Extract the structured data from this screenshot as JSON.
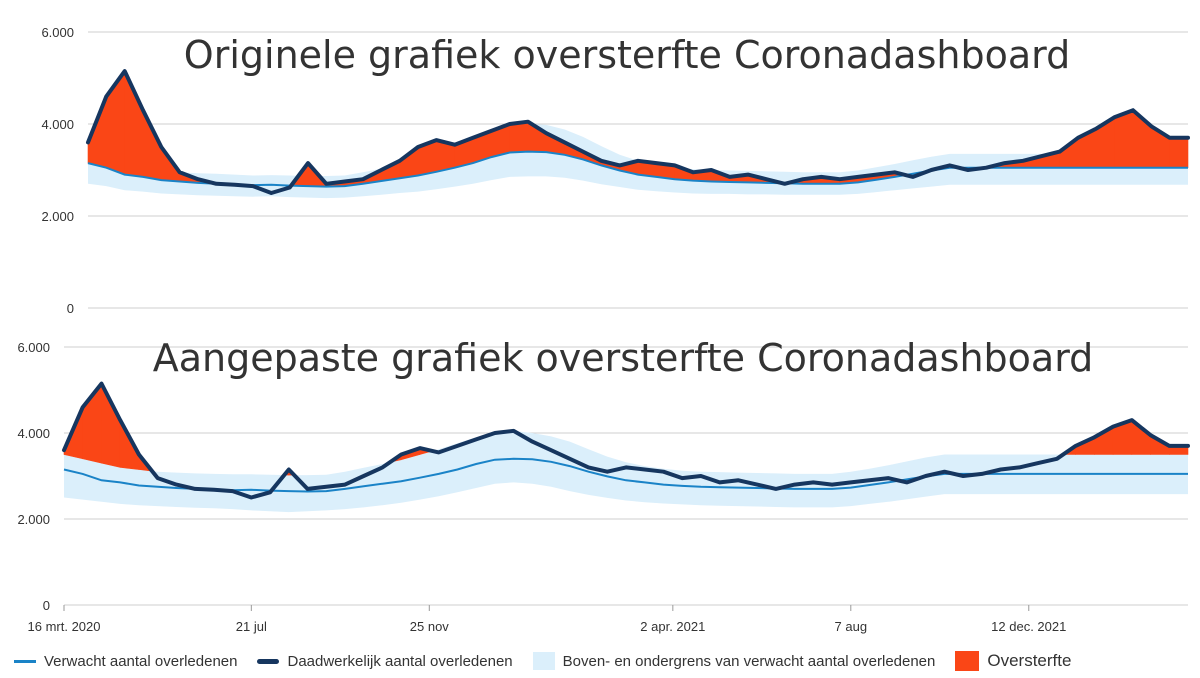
{
  "chart_data": [
    {
      "type": "line",
      "title": "Originele grafiek oversterfte Coronadashboard",
      "show_xticks": false,
      "ylim": [
        0,
        6000
      ],
      "yticks": [
        0,
        2000,
        4000,
        6000
      ],
      "ytick_labels": [
        "0",
        "2.000",
        "4.000",
        "6.000"
      ],
      "x_tick_labels": [],
      "grid": true,
      "x_weeks": [
        1,
        3,
        5,
        7,
        9,
        11,
        13,
        15,
        17,
        19,
        21,
        23,
        25,
        27,
        29,
        31,
        33,
        35,
        37,
        39,
        41,
        43,
        45,
        47,
        49,
        51,
        53,
        55,
        57,
        59,
        61,
        63,
        65,
        67,
        69,
        71,
        73,
        75,
        77,
        79,
        81,
        83,
        85,
        87,
        89,
        91,
        93,
        95,
        97,
        99,
        101,
        103,
        105,
        107,
        109,
        111,
        113,
        115,
        117,
        119,
        121
      ],
      "series": [
        {
          "name": "Verwacht aantal overledenen",
          "role": "expected",
          "values": [
            3150,
            3050,
            2900,
            2850,
            2780,
            2750,
            2720,
            2700,
            2680,
            2670,
            2680,
            2660,
            2650,
            2640,
            2650,
            2700,
            2760,
            2820,
            2880,
            2960,
            3050,
            3150,
            3280,
            3380,
            3400,
            3390,
            3330,
            3230,
            3100,
            2990,
            2900,
            2850,
            2800,
            2770,
            2750,
            2740,
            2730,
            2720,
            2710,
            2700,
            2700,
            2700,
            2730,
            2790,
            2850,
            2920,
            2990,
            3050,
            3050,
            3050,
            3050,
            3050,
            3050,
            3050,
            3050,
            3050,
            3050,
            3050,
            3050,
            3050,
            3050
          ]
        },
        {
          "name": "Boven- en ondergrens van verwacht aantal overledenen",
          "role": "band",
          "upper": [
            3400,
            3300,
            3150,
            3100,
            3000,
            2950,
            2930,
            2920,
            2900,
            2880,
            2890,
            2880,
            2870,
            2870,
            2880,
            2950,
            3030,
            3110,
            3210,
            3330,
            3460,
            3600,
            3800,
            3950,
            4000,
            3980,
            3880,
            3720,
            3520,
            3330,
            3200,
            3120,
            3060,
            3020,
            3000,
            2990,
            2980,
            2970,
            2960,
            2950,
            2950,
            2950,
            2990,
            3060,
            3130,
            3210,
            3290,
            3350,
            3350,
            3350,
            3350,
            3350,
            3350,
            3350,
            3350,
            3350,
            3350,
            3350,
            3350,
            3350,
            3350
          ],
          "lower": [
            2700,
            2650,
            2560,
            2530,
            2490,
            2470,
            2450,
            2440,
            2430,
            2420,
            2430,
            2410,
            2400,
            2390,
            2400,
            2430,
            2460,
            2500,
            2530,
            2580,
            2640,
            2700,
            2780,
            2850,
            2860,
            2860,
            2830,
            2770,
            2690,
            2630,
            2570,
            2540,
            2510,
            2490,
            2480,
            2480,
            2470,
            2470,
            2460,
            2460,
            2460,
            2460,
            2480,
            2520,
            2560,
            2600,
            2640,
            2680,
            2680,
            2680,
            2680,
            2680,
            2680,
            2680,
            2680,
            2680,
            2680,
            2680,
            2680,
            2680,
            2680
          ]
        },
        {
          "name": "Daadwerkelijk aantal overledenen",
          "role": "actual",
          "values": [
            3600,
            4600,
            5150,
            4300,
            3500,
            2950,
            2800,
            2700,
            2680,
            2650,
            2500,
            2620,
            3150,
            2700,
            2750,
            2800,
            3000,
            3200,
            3500,
            3650,
            3550,
            3700,
            3850,
            4000,
            4050,
            3800,
            3600,
            3400,
            3200,
            3100,
            3200,
            3150,
            3100,
            2950,
            3000,
            2850,
            2900,
            2800,
            2700,
            2800,
            2850,
            2800,
            2850,
            2900,
            2950,
            2850,
            3000,
            3100,
            3000,
            3050,
            3150,
            3200,
            3300,
            3400,
            3700,
            3900,
            4150,
            4300,
            3950,
            3700,
            3700
          ]
        },
        {
          "name": "Oversterfte",
          "role": "excess",
          "values": []
        }
      ]
    },
    {
      "type": "line",
      "title": "Aangepaste grafiek oversterfte Coronadashboard",
      "show_xticks": true,
      "ylim": [
        0,
        6000
      ],
      "yticks": [
        0,
        2000,
        4000,
        6000
      ],
      "ytick_labels": [
        "0",
        "2.000",
        "4.000",
        "6.000"
      ],
      "x_tick_labels": [
        {
          "label": "16 mrt. 2020",
          "week": 1
        },
        {
          "label": "21 jul",
          "week": 21
        },
        {
          "label": "25 nov",
          "week": 40
        },
        {
          "label": "2 apr. 2021",
          "week": 66
        },
        {
          "label": "7 aug",
          "week": 85
        },
        {
          "label": "12 dec. 2021",
          "week": 104
        }
      ],
      "grid": true,
      "x_weeks": [
        1,
        3,
        5,
        7,
        9,
        11,
        13,
        15,
        17,
        19,
        21,
        23,
        25,
        27,
        29,
        31,
        33,
        35,
        37,
        39,
        41,
        43,
        45,
        47,
        49,
        51,
        53,
        55,
        57,
        59,
        61,
        63,
        65,
        67,
        69,
        71,
        73,
        75,
        77,
        79,
        81,
        83,
        85,
        87,
        89,
        91,
        93,
        95,
        97,
        99,
        101,
        103,
        105,
        107,
        109,
        111,
        113,
        115,
        117,
        119,
        121
      ],
      "series": [
        {
          "name": "Verwacht aantal overledenen",
          "role": "expected",
          "values": [
            3150,
            3050,
            2900,
            2850,
            2780,
            2750,
            2720,
            2700,
            2680,
            2670,
            2680,
            2660,
            2650,
            2640,
            2650,
            2700,
            2760,
            2820,
            2880,
            2960,
            3050,
            3150,
            3280,
            3380,
            3400,
            3390,
            3330,
            3230,
            3100,
            2990,
            2900,
            2850,
            2800,
            2770,
            2750,
            2740,
            2730,
            2720,
            2710,
            2700,
            2700,
            2700,
            2730,
            2790,
            2850,
            2920,
            2990,
            3050,
            3050,
            3050,
            3050,
            3050,
            3050,
            3050,
            3050,
            3050,
            3050,
            3050,
            3050,
            3050,
            3050
          ]
        },
        {
          "name": "Boven- en ondergrens van verwacht aantal overledenen",
          "role": "band",
          "upper": [
            3500,
            3400,
            3300,
            3200,
            3150,
            3100,
            3080,
            3060,
            3050,
            3040,
            3040,
            3030,
            3020,
            3020,
            3030,
            3100,
            3190,
            3280,
            3380,
            3500,
            3620,
            3760,
            3900,
            4000,
            4050,
            4000,
            3920,
            3800,
            3620,
            3450,
            3320,
            3230,
            3170,
            3120,
            3100,
            3090,
            3080,
            3070,
            3060,
            3050,
            3050,
            3050,
            3100,
            3170,
            3250,
            3340,
            3430,
            3500,
            3500,
            3500,
            3500,
            3500,
            3500,
            3500,
            3500,
            3500,
            3500,
            3500,
            3500,
            3500,
            3500
          ],
          "lower": [
            2500,
            2450,
            2400,
            2350,
            2320,
            2300,
            2280,
            2260,
            2250,
            2230,
            2200,
            2180,
            2160,
            2180,
            2200,
            2230,
            2270,
            2320,
            2380,
            2450,
            2530,
            2620,
            2720,
            2820,
            2850,
            2820,
            2750,
            2650,
            2560,
            2490,
            2430,
            2390,
            2360,
            2340,
            2320,
            2310,
            2300,
            2290,
            2280,
            2270,
            2270,
            2270,
            2300,
            2350,
            2400,
            2460,
            2520,
            2580,
            2580,
            2580,
            2580,
            2580,
            2580,
            2580,
            2580,
            2580,
            2580,
            2580,
            2580,
            2580,
            2580
          ]
        },
        {
          "name": "Daadwerkelijk aantal overledenen",
          "role": "actual",
          "values": [
            3600,
            4600,
            5150,
            4300,
            3500,
            2950,
            2800,
            2700,
            2680,
            2650,
            2500,
            2620,
            3150,
            2700,
            2750,
            2800,
            3000,
            3200,
            3500,
            3650,
            3550,
            3700,
            3850,
            4000,
            4050,
            3800,
            3600,
            3400,
            3200,
            3100,
            3200,
            3150,
            3100,
            2950,
            3000,
            2850,
            2900,
            2800,
            2700,
            2800,
            2850,
            2800,
            2850,
            2900,
            2950,
            2850,
            3000,
            3100,
            3000,
            3050,
            3150,
            3200,
            3300,
            3400,
            3700,
            3900,
            4150,
            4300,
            3950,
            3700,
            3700
          ]
        },
        {
          "name": "Oversterfte",
          "role": "excess",
          "values": []
        }
      ]
    }
  ],
  "legend": {
    "expected": "Verwacht aantal overledenen",
    "actual": "Daadwerkelijk aantal overledenen",
    "band": "Boven- en ondergrens van verwacht aantal overledenen",
    "excess": "Oversterfte"
  },
  "colors": {
    "expected": "#1a83c7",
    "actual": "#16365f",
    "band": "#dbeffb",
    "excess": "#fa4616",
    "grid": "#cfcfcf",
    "text": "#333333"
  }
}
